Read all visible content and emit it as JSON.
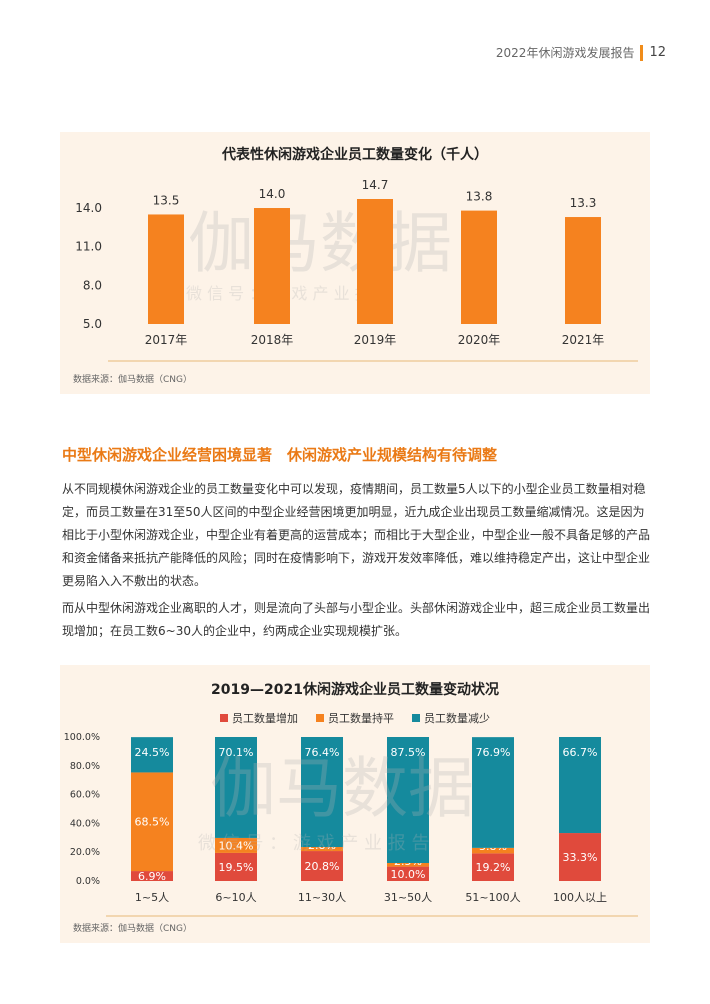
{
  "header": {
    "title": "2022年休闲游戏发展报告",
    "page": "12"
  },
  "chart1": {
    "title": "代表性休闲游戏企业员工数量变化（千人）",
    "source": "数据来源：伽马数据（CNG）",
    "watermark_main": "伽马数据",
    "watermark_sub": "微 信 号 ： 游 戏 产 业 报 告"
  },
  "section": {
    "title": "中型休闲游戏企业经营困境显著　休闲游戏产业规模结构有待调整",
    "paragraph1": "从不同规模休闲游戏企业的员工数量变化中可以发现，疫情期间，员工数量5人以下的小型企业员工数量相对稳定，而员工数量在31至50人区间的中型企业经营困境更加明显，近九成企业出现员工数量缩减情况。这是因为相比于小型休闲游戏企业，中型企业有着更高的运营成本；而相比于大型企业，中型企业一般不具备足够的产品和资金储备来抵抗产能降低的风险；同时在疫情影响下，游戏开发效率降低，难以维持稳定产出，这让中型企业更易陷入入不敷出的状态。",
    "paragraph2": "而从中型休闲游戏企业离职的人才，则是流向了头部与小型企业。头部休闲游戏企业中，超三成企业员工数量出现增加；在员工数6~30人的企业中，约两成企业实现规模扩张。"
  },
  "chart2": {
    "title": "2019—2021休闲游戏企业员工数量变动状况",
    "source": "数据来源：伽马数据（CNG）",
    "watermark_main": "伽马数据",
    "watermark_sub": "微 信 号 ： 游 戏 产 业 报 告"
  },
  "colors": {
    "orange": "#f5821f",
    "red": "#e04a3c",
    "teal": "#158a9d",
    "axis": "#e7b878"
  },
  "chart_data": [
    {
      "type": "bar",
      "title": "代表性休闲游戏企业员工数量变化（千人）",
      "categories": [
        "2017年",
        "2018年",
        "2019年",
        "2020年",
        "2021年"
      ],
      "values": [
        13.5,
        14.0,
        14.7,
        13.8,
        13.3
      ],
      "value_labels": [
        "13.5",
        "14.0",
        "14.7",
        "13.8",
        "13.3"
      ],
      "yticks": [
        "14.0",
        "11.0",
        "8.0",
        "5.0"
      ],
      "ytick_values": [
        14.0,
        11.0,
        8.0,
        5.0
      ],
      "ylim": [
        5.0,
        14.7
      ],
      "grid": false
    },
    {
      "type": "bar",
      "stacked": true,
      "title": "2019—2021休闲游戏企业员工数量变动状况",
      "categories": [
        "1~5人",
        "6~10人",
        "11~30人",
        "31~50人",
        "51~100人",
        "100人以上"
      ],
      "series": [
        {
          "name": "员工数量增加",
          "values": [
            6.9,
            19.5,
            20.8,
            10.0,
            19.2,
            33.3
          ],
          "labels": [
            "6.9%",
            "19.5%",
            "20.8%",
            "10.0%",
            "19.2%",
            "33.3%"
          ]
        },
        {
          "name": "员工数量持平",
          "values": [
            68.5,
            10.4,
            2.8,
            2.5,
            3.8,
            0
          ],
          "labels": [
            "68.5%",
            "10.4%",
            "2.8%",
            "2.5%",
            "3.8%",
            ""
          ]
        },
        {
          "name": "员工数量减少",
          "values": [
            24.5,
            70.1,
            76.4,
            87.5,
            76.9,
            66.7
          ],
          "labels": [
            "24.5%",
            "70.1%",
            "76.4%",
            "87.5%",
            "76.9%",
            "66.7%"
          ]
        }
      ],
      "yticks": [
        "100.0%",
        "80.0%",
        "60.0%",
        "40.0%",
        "20.0%",
        "0.0%"
      ],
      "ytick_values": [
        100,
        80,
        60,
        40,
        20,
        0
      ],
      "ylim": [
        0,
        100
      ],
      "legend": "top-center",
      "grid": false
    }
  ]
}
